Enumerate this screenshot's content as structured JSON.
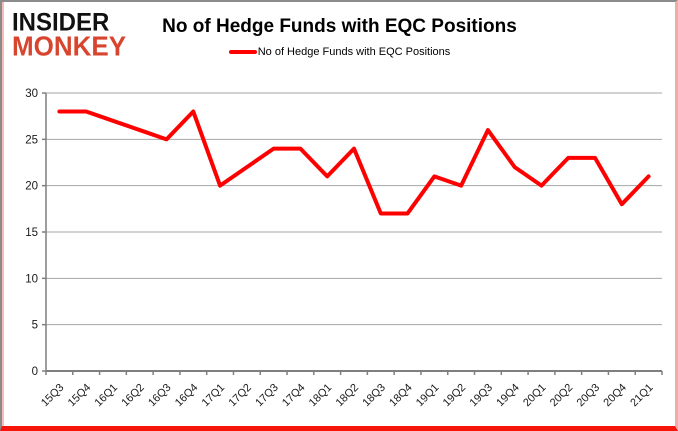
{
  "logo": {
    "line1": "INSIDER",
    "line2": "MONKEY",
    "line1_color": "#111111",
    "line2_color": "#D8452E"
  },
  "header": {
    "title": "No of Hedge Funds with EQC Positions"
  },
  "legend": {
    "label": "No of Hedge Funds with EQC Positions",
    "marker_color": "#FF0000",
    "position": "top"
  },
  "frame_colors": {
    "border_grey": "#8B8B8B",
    "border_pink": "#F2ACA6",
    "border_red": "#F5150A"
  },
  "chart_data": {
    "type": "line",
    "title": "No of Hedge Funds with EQC Positions",
    "categories": [
      "15Q3",
      "15Q4",
      "16Q1",
      "16Q2",
      "16Q3",
      "16Q4",
      "17Q1",
      "17Q2",
      "17Q3",
      "17Q4",
      "18Q1",
      "18Q2",
      "18Q3",
      "18Q4",
      "19Q1",
      "19Q2",
      "19Q3",
      "19Q4",
      "20Q1",
      "20Q2",
      "20Q3",
      "20Q4",
      "21Q1"
    ],
    "series": [
      {
        "name": "No of Hedge Funds with EQC Positions",
        "color": "#FF0000",
        "values": [
          28,
          28,
          27,
          26,
          25,
          28,
          20,
          22,
          24,
          24,
          21,
          24,
          17,
          17,
          21,
          20,
          26,
          22,
          20,
          23,
          23,
          18,
          21
        ]
      }
    ],
    "xlabel": "",
    "ylabel": "",
    "ylim": [
      0,
      30
    ],
    "ytick_interval": 5,
    "grid": true,
    "legend_position": "top",
    "axis_color": "#7F7F7F",
    "grid_color": "#A6A6A6",
    "tick_label_color": "#1A1A1A"
  }
}
